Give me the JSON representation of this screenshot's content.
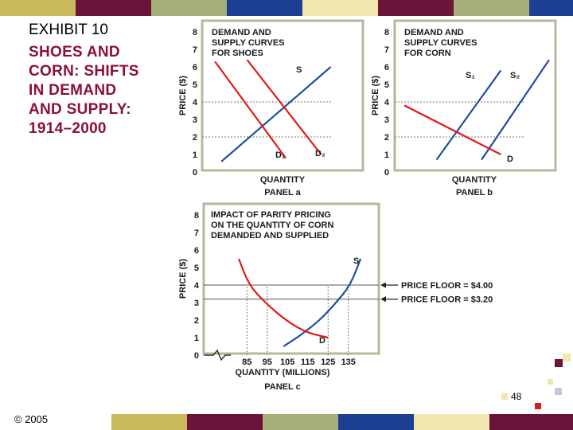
{
  "title": {
    "exhibit": "EXHIBIT 10",
    "subtitle": "SHOES AND\nCORN: SHIFTS\nIN DEMAND\nAND SUPPLY:\n1914–2000"
  },
  "footer": {
    "copyright": "© 2005",
    "page_number": "48"
  },
  "colors": {
    "demand": "#e01b1b",
    "supply": "#1f4e9c",
    "panel_border": "#b5b99a",
    "title_red": "#8a0f3b",
    "band": [
      "#c9b95b",
      "#6b1338",
      "#a6b07a",
      "#1d3f91",
      "#f2e6b0",
      "#6b1338",
      "#a6b07a",
      "#1d3f91"
    ]
  },
  "chart_data": [
    {
      "type": "line",
      "panel_title": "DEMAND AND\nSUPPLY CURVES\nFOR SHOES",
      "panel_label": "PANEL a",
      "xlabel": "QUANTITY",
      "ylabel": "PRICE ($)",
      "ylim": [
        0,
        8
      ],
      "yticks": [
        "0",
        "1",
        "2",
        "3",
        "4",
        "5",
        "6",
        "7",
        "8"
      ],
      "gridlines_y": [
        2,
        4
      ],
      "series": [
        {
          "name": "S",
          "kind": "supply",
          "x": [
            0.12,
            0.8
          ],
          "y": [
            0.6,
            6.0
          ]
        },
        {
          "name": "D1",
          "kind": "demand",
          "x": [
            0.08,
            0.52
          ],
          "y": [
            6.3,
            0.8
          ]
        },
        {
          "name": "D2",
          "kind": "demand",
          "x": [
            0.28,
            0.74
          ],
          "y": [
            6.4,
            1.0
          ]
        }
      ],
      "labels": [
        "S",
        "D₁",
        "D₂"
      ]
    },
    {
      "type": "line",
      "panel_title": "DEMAND AND\nSUPPLY CURVES\nFOR CORN",
      "panel_label": "PANEL b",
      "xlabel": "QUANTITY",
      "ylabel": "PRICE ($)",
      "ylim": [
        0,
        8
      ],
      "yticks": [
        "0",
        "1",
        "2",
        "3",
        "4",
        "5",
        "6",
        "7",
        "8"
      ],
      "gridlines_y": [
        2,
        4
      ],
      "series": [
        {
          "name": "S1",
          "kind": "supply",
          "x": [
            0.26,
            0.66
          ],
          "y": [
            0.7,
            5.8
          ]
        },
        {
          "name": "S2",
          "kind": "supply",
          "x": [
            0.54,
            0.96
          ],
          "y": [
            0.7,
            6.4
          ]
        },
        {
          "name": "D",
          "kind": "demand",
          "x": [
            0.06,
            0.66
          ],
          "y": [
            3.8,
            1.0
          ]
        }
      ],
      "labels": [
        "S₁",
        "S₂",
        "D"
      ]
    },
    {
      "type": "line",
      "panel_title": "IMPACT OF PARITY PRICING\nON THE QUANTITY OF CORN\nDEMANDED AND SUPPLIED",
      "panel_label": "PANEL c",
      "xlabel": "QUANTITY (MILLIONS)",
      "ylabel": "PRICE ($)",
      "ylim": [
        0,
        8
      ],
      "yticks": [
        "0",
        "1",
        "2",
        "3",
        "4",
        "5",
        "6",
        "7",
        "8"
      ],
      "xticks": [
        "85",
        "95",
        "105",
        "115",
        "125",
        "135"
      ],
      "xlim": [
        70,
        150
      ],
      "series": [
        {
          "name": "S",
          "kind": "supply",
          "x": [
            103,
            111,
            121,
            129,
            136,
            141
          ],
          "y": [
            0.5,
            1.1,
            2.0,
            3.0,
            4.0,
            5.5
          ]
        },
        {
          "name": "D",
          "kind": "demand",
          "x": [
            81,
            86,
            94,
            104,
            114,
            125
          ],
          "y": [
            5.5,
            4.0,
            3.0,
            2.0,
            1.3,
            1.0
          ]
        }
      ],
      "labels": [
        "S",
        "D"
      ],
      "annotations": [
        "PRICE FLOOR = $4.00",
        "PRICE FLOOR = $3.20"
      ],
      "price_floors": [
        4.0,
        3.2
      ],
      "guide_x": [
        85,
        95,
        125,
        135
      ]
    }
  ]
}
